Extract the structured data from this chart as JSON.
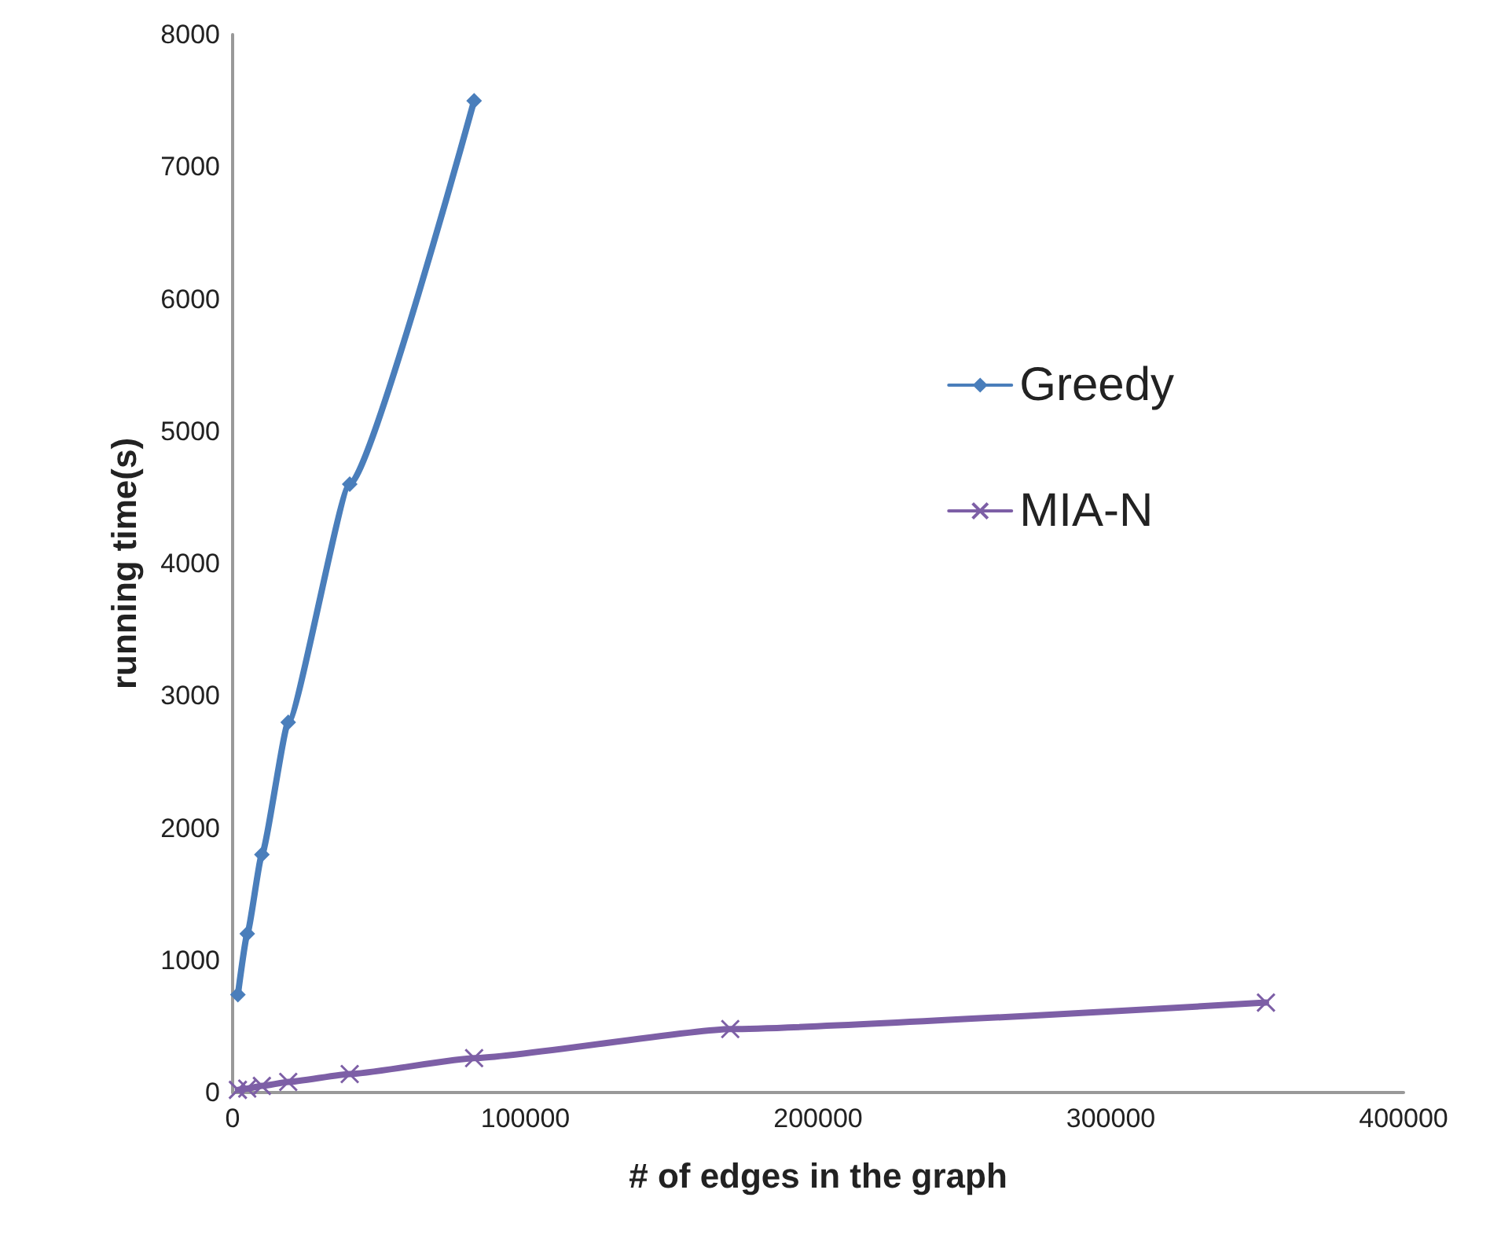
{
  "chart_data": {
    "type": "line",
    "xlabel": "# of edges in the graph",
    "ylabel": "running time(s)",
    "xlim": [
      0,
      400000
    ],
    "xticks": [
      0,
      100000,
      200000,
      300000,
      400000
    ],
    "ylim": [
      0,
      8000
    ],
    "yticks": [
      0,
      1000,
      2000,
      3000,
      4000,
      5000,
      6000,
      7000,
      8000
    ],
    "grid": false,
    "legend": "right",
    "series": [
      {
        "name": "Greedy",
        "color": "#4a7ebb",
        "marker": "diamond",
        "x": [
          1800,
          5000,
          10000,
          19000,
          40000,
          82500
        ],
        "values": [
          740,
          1200,
          1800,
          2800,
          4600,
          7500
        ]
      },
      {
        "name": "MIA-N",
        "color": "#7d5fa6",
        "marker": "cross",
        "x": [
          1800,
          5000,
          10000,
          19000,
          40000,
          82500,
          170000,
          353000
        ],
        "values": [
          20,
          30,
          50,
          80,
          140,
          260,
          480,
          680
        ]
      }
    ]
  }
}
